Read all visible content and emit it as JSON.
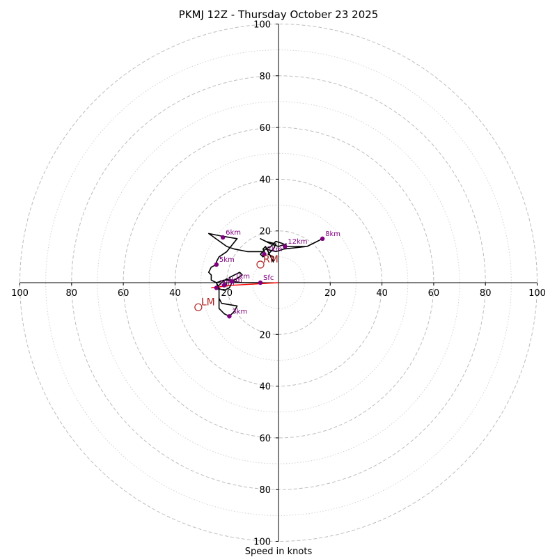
{
  "chart_data": {
    "type": "scatter",
    "title": "PKMJ 12Z - Thursday October 23 2025",
    "xlabel": "Speed in knots",
    "xlim": [
      -100,
      100
    ],
    "ylim": [
      -100,
      100
    ],
    "ring_major": [
      20,
      40,
      60,
      80,
      100
    ],
    "ring_minor": [
      10,
      30,
      50,
      70,
      90
    ],
    "x_ticks": [
      {
        "value": -100,
        "label": "100"
      },
      {
        "value": -80,
        "label": "80"
      },
      {
        "value": -60,
        "label": "60"
      },
      {
        "value": -40,
        "label": "40"
      },
      {
        "value": -20,
        "label": "20"
      },
      {
        "value": 20,
        "label": "20"
      },
      {
        "value": 40,
        "label": "40"
      },
      {
        "value": 60,
        "label": "60"
      },
      {
        "value": 80,
        "label": "80"
      },
      {
        "value": 100,
        "label": "100"
      }
    ],
    "y_ticks": [
      {
        "value": 100,
        "label": "100"
      },
      {
        "value": 80,
        "label": "80"
      },
      {
        "value": 60,
        "label": "60"
      },
      {
        "value": 40,
        "label": "40"
      },
      {
        "value": 20,
        "label": "20"
      },
      {
        "value": -20,
        "label": "20"
      },
      {
        "value": -40,
        "label": "40"
      },
      {
        "value": -60,
        "label": "60"
      },
      {
        "value": -80,
        "label": "80"
      },
      {
        "value": -100,
        "label": "100"
      }
    ],
    "hodograph_trace": [
      [
        -7,
        0
      ],
      [
        -14,
        0
      ],
      [
        -18,
        0.5
      ],
      [
        -20,
        1.5
      ],
      [
        -22,
        0
      ],
      [
        -24,
        -2
      ],
      [
        -21,
        -3
      ],
      [
        -19,
        -2
      ],
      [
        -18,
        0
      ],
      [
        -19,
        2
      ],
      [
        -17,
        3
      ],
      [
        -15,
        4
      ],
      [
        -14,
        3
      ],
      [
        -17,
        1
      ],
      [
        -21,
        1
      ],
      [
        -24,
        0
      ],
      [
        -23,
        -3
      ],
      [
        -23,
        -6
      ],
      [
        -22,
        -8
      ],
      [
        -16,
        -9
      ],
      [
        -17,
        -11
      ],
      [
        -19,
        -13
      ],
      [
        -21,
        -12
      ],
      [
        -23,
        -10
      ],
      [
        -23,
        -2
      ],
      [
        -24,
        0
      ],
      [
        -26,
        1
      ],
      [
        -26,
        3
      ],
      [
        -27,
        4
      ],
      [
        -26,
        6
      ],
      [
        -24,
        7
      ],
      [
        -24,
        8
      ],
      [
        -23,
        10
      ],
      [
        -20,
        12
      ],
      [
        -16,
        17
      ],
      [
        -22,
        18
      ],
      [
        -27,
        19
      ],
      [
        -20,
        14
      ],
      [
        -17,
        13
      ],
      [
        -12,
        12
      ],
      [
        -6,
        12
      ],
      [
        -5,
        13
      ],
      [
        -1,
        12
      ],
      [
        2,
        13
      ],
      [
        11,
        14
      ],
      [
        13,
        15
      ],
      [
        17,
        17
      ],
      [
        15,
        16
      ],
      [
        11,
        14
      ],
      [
        2,
        14
      ],
      [
        3,
        15
      ],
      [
        0,
        14
      ],
      [
        -3,
        15
      ],
      [
        -7,
        17
      ],
      [
        -5,
        16
      ],
      [
        -1,
        15
      ],
      [
        -2,
        13
      ],
      [
        -4,
        11
      ],
      [
        -2,
        10
      ],
      [
        -2,
        8
      ],
      [
        -4,
        12
      ],
      [
        -5,
        14
      ],
      [
        -6,
        13
      ],
      [
        -5,
        11
      ],
      [
        -6,
        10
      ],
      [
        -7,
        11
      ],
      [
        -5,
        13
      ],
      [
        -3,
        14
      ],
      [
        -1,
        16
      ],
      [
        2,
        15
      ]
    ],
    "height_points": [
      {
        "label": "Sfc",
        "u": -7,
        "v": 0
      },
      {
        "label": "1km",
        "u": -18,
        "v": 0.5
      },
      {
        "label": "2km",
        "u": -24,
        "v": -2
      },
      {
        "label": "3km",
        "u": -19,
        "v": -13
      },
      {
        "label": "4km",
        "u": -21,
        "v": -1
      },
      {
        "label": "5km",
        "u": -24,
        "v": 7
      },
      {
        "label": "6km",
        "u": -21.5,
        "v": 17.5
      },
      {
        "label": "7km",
        "u": -5.5,
        "v": 11
      },
      {
        "label": "8km",
        "u": 17,
        "v": 17
      },
      {
        "label": "12km",
        "u": 2.5,
        "v": 14
      }
    ],
    "storm_motion": [
      {
        "label": "RM",
        "u": -7,
        "v": 7
      },
      {
        "label": "LM",
        "u": -31,
        "v": -9.5
      }
    ],
    "shear_vectors": [
      {
        "from": [
          0,
          0
        ],
        "to": [
          -18,
          -1
        ]
      },
      {
        "from": [
          -18,
          -1
        ],
        "to": [
          -26,
          -2
        ]
      }
    ],
    "colors": {
      "trace": "#000000",
      "height_points": "#800080",
      "storm_motion": "#b22222",
      "shear": "#ff0000"
    }
  }
}
